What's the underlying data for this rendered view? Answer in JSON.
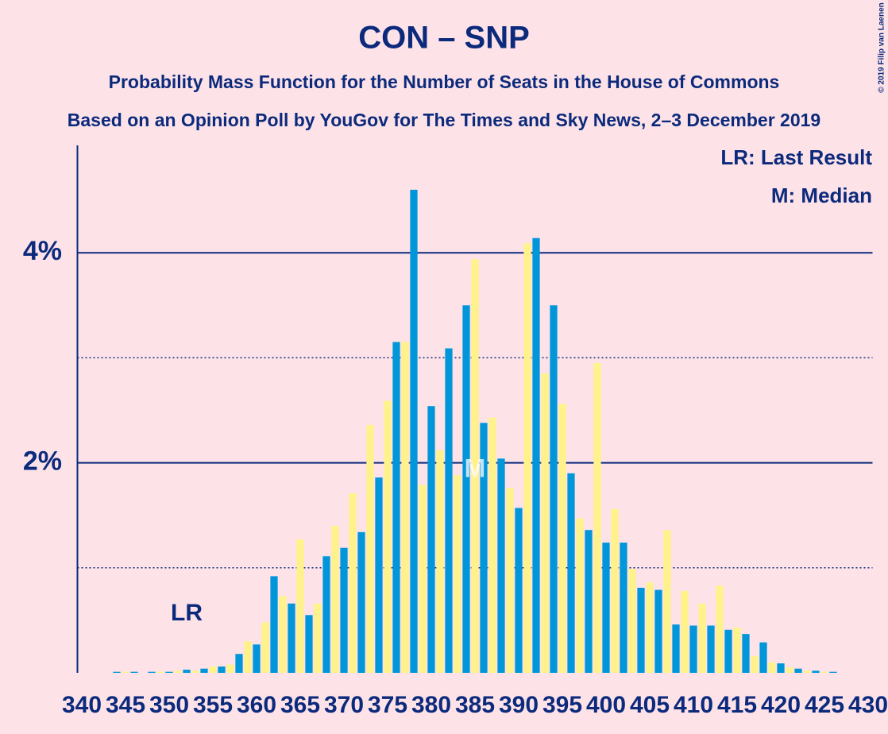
{
  "chart_data": {
    "type": "bar",
    "title": "CON – SNP",
    "subtitle": "Probability Mass Function for the Number of Seats in the House of Commons",
    "subtitle2": "Based on an Opinion Poll by YouGov for The Times and Sky News, 2–3 December 2019",
    "copyright": "© 2019 Filip van Laenen",
    "legend": [
      "LR: Last Result",
      "M: Median"
    ],
    "legend_position": "upper right",
    "colors": [
      "#0096d9",
      "#fff28a"
    ],
    "x": [
      340,
      341,
      342,
      343,
      344,
      345,
      346,
      347,
      348,
      349,
      350,
      351,
      352,
      353,
      354,
      355,
      356,
      357,
      358,
      359,
      360,
      361,
      362,
      363,
      364,
      365,
      366,
      367,
      368,
      369,
      370,
      371,
      372,
      373,
      374,
      375,
      376,
      377,
      378,
      379,
      380,
      381,
      382,
      383,
      384,
      385,
      386,
      387,
      388,
      389,
      390,
      391,
      392,
      393,
      394,
      395,
      396,
      397,
      398,
      399,
      400,
      401,
      402,
      403,
      404,
      405,
      406,
      407,
      408,
      409,
      410,
      411,
      412,
      413,
      414,
      415,
      416,
      417,
      418,
      419,
      420,
      421,
      422,
      423,
      424,
      425,
      426,
      427,
      428,
      429,
      430
    ],
    "values": [
      0,
      0,
      0,
      0,
      0.01,
      0.01,
      0.01,
      0,
      0.01,
      0.01,
      0.01,
      0.02,
      0.03,
      0.02,
      0.04,
      0.06,
      0.06,
      0.08,
      0.18,
      0.3,
      0.27,
      0.48,
      0.92,
      0.73,
      0.66,
      1.27,
      0.55,
      0.66,
      1.11,
      1.4,
      1.19,
      1.71,
      1.34,
      2.36,
      1.86,
      2.59,
      3.15,
      3.15,
      4.6,
      1.79,
      2.54,
      2.12,
      3.09,
      1.88,
      3.5,
      3.94,
      2.38,
      2.43,
      2.04,
      1.76,
      1.57,
      4.09,
      4.14,
      2.85,
      3.5,
      2.56,
      1.9,
      1.47,
      1.36,
      2.95,
      1.24,
      1.56,
      1.24,
      0.99,
      0.81,
      0.86,
      0.79,
      1.36,
      0.46,
      0.78,
      0.45,
      0.66,
      0.45,
      0.83,
      0.41,
      0.43,
      0.37,
      0.16,
      0.29,
      0.1,
      0.09,
      0.05,
      0.04,
      0.02,
      0.02,
      0.01,
      0.01,
      0,
      0,
      0,
      0
    ],
    "xlim": [
      339.5,
      430.5
    ],
    "xticks": [
      340,
      345,
      350,
      355,
      360,
      365,
      370,
      375,
      380,
      385,
      390,
      395,
      400,
      405,
      410,
      415,
      420,
      425,
      430
    ],
    "ylim": [
      0,
      5
    ],
    "yticks": [
      {
        "value": 2,
        "label": "2%"
      },
      {
        "value": 4,
        "label": "4%"
      }
    ],
    "minor_gridlines": [
      1,
      3
    ],
    "grid": true,
    "annotations": [
      {
        "text": "LR",
        "x": 352
      },
      {
        "text": "M",
        "x": 385
      }
    ]
  }
}
